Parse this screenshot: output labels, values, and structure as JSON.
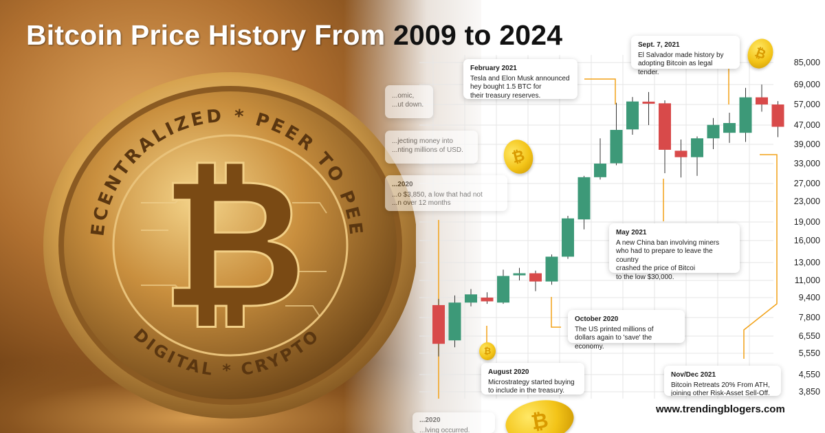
{
  "title": {
    "light": "Bitcoin Price History From",
    "dark": "2009 to 2024"
  },
  "coin_inscription": {
    "top_text": "DECENTRALIZED * PEER TO PEER",
    "bottom_text": "DIGITAL * CRYPTO"
  },
  "chart_data": {
    "type": "candlestick",
    "y_ticks": [
      "85,000",
      "69,000",
      "57,000",
      "47,000",
      "39,000",
      "33,000",
      "27,000",
      "23,000",
      "19,000",
      "16,000",
      "13,000",
      "11,000",
      "9,400",
      "7,800",
      "6,550",
      "5,550",
      "4,550",
      "3,850"
    ],
    "y_tick_values": [
      85000,
      69000,
      57000,
      47000,
      39000,
      33000,
      27000,
      23000,
      19000,
      16000,
      13000,
      11000,
      9400,
      7800,
      6550,
      5550,
      4550,
      3850
    ],
    "candles": [
      {
        "open": 8800,
        "close": 6100,
        "high": 9300,
        "low": 5400
      },
      {
        "open": 6300,
        "close": 9000,
        "high": 9600,
        "low": 5900
      },
      {
        "open": 9000,
        "close": 9700,
        "high": 10200,
        "low": 8700
      },
      {
        "open": 9400,
        "close": 9100,
        "high": 9900,
        "low": 8900
      },
      {
        "open": 9000,
        "close": 11500,
        "high": 12200,
        "low": 8900
      },
      {
        "open": 11600,
        "close": 11800,
        "high": 12400,
        "low": 11000
      },
      {
        "open": 11800,
        "close": 10900,
        "high": 12100,
        "low": 10000
      },
      {
        "open": 10900,
        "close": 13800,
        "high": 14100,
        "low": 10600
      },
      {
        "open": 13800,
        "close": 19700,
        "high": 20200,
        "low": 13500
      },
      {
        "open": 19500,
        "close": 28900,
        "high": 29300,
        "low": 17800
      },
      {
        "open": 28900,
        "close": 33000,
        "high": 41500,
        "low": 28200
      },
      {
        "open": 33100,
        "close": 45000,
        "high": 58000,
        "low": 32500
      },
      {
        "open": 45200,
        "close": 58800,
        "high": 61500,
        "low": 43000
      },
      {
        "open": 58700,
        "close": 57800,
        "high": 64500,
        "low": 47000
      },
      {
        "open": 57700,
        "close": 37300,
        "high": 59500,
        "low": 30100
      },
      {
        "open": 37000,
        "close": 35000,
        "high": 41000,
        "low": 28800
      },
      {
        "open": 35000,
        "close": 41500,
        "high": 42300,
        "low": 29300
      },
      {
        "open": 41500,
        "close": 47100,
        "high": 50400,
        "low": 37500
      },
      {
        "open": 43800,
        "close": 48000,
        "high": 53000,
        "low": 39600
      },
      {
        "open": 43800,
        "close": 61300,
        "high": 67000,
        "low": 40000
      },
      {
        "open": 61300,
        "close": 57000,
        "high": 69000,
        "low": 53500
      },
      {
        "open": 57000,
        "close": 46300,
        "high": 59000,
        "low": 42000
      }
    ],
    "colors": {
      "up": "#3d9978",
      "down": "#d84a4a",
      "grid": "#e6e6e6",
      "connector": "#f2a115"
    }
  },
  "annotations": [
    {
      "head": "",
      "body": "...omic,\n...ut down.",
      "faded": true
    },
    {
      "head": "",
      "body": "...jecting money into\n...nting millions of USD.",
      "faded": true
    },
    {
      "head": "...2020",
      "body": "...o $3,850, a low that had not\n...n over 12 months",
      "faded": true
    },
    {
      "head": "February 2021",
      "body": "Tesla and Elon Musk announced\nhey bought 1.5 BTC for\ntheir treasury reserves.",
      "faded": false
    },
    {
      "head": "Sept. 7, 2021",
      "body": "El Salvador made history by\nadopting Bitcoin as legal tender.",
      "faded": false
    },
    {
      "head": "May 2021",
      "body": "A new China ban involving miners\nwho had to prepare to leave the country\ncrashed the price of Bitcoi\n to the low $30,000.",
      "faded": false
    },
    {
      "head": "October 2020",
      "body": "The US printed millions of\ndollars again to 'save' the economy.",
      "faded": false
    },
    {
      "head": "August 2020",
      "body": "Microstrategy started buying\nto include in the treasury.",
      "faded": false
    },
    {
      "head": "Nov/Dec 2021",
      "body": "Bitcoin Retreats 20% From ATH,\njoining other Risk-Asset Sell-Off.",
      "faded": false
    },
    {
      "head": "...2020",
      "body": "...lving occurred.",
      "faded": true
    }
  ],
  "coin_symbol": "₿",
  "footer": {
    "site": "www.trendingblogers.com"
  }
}
